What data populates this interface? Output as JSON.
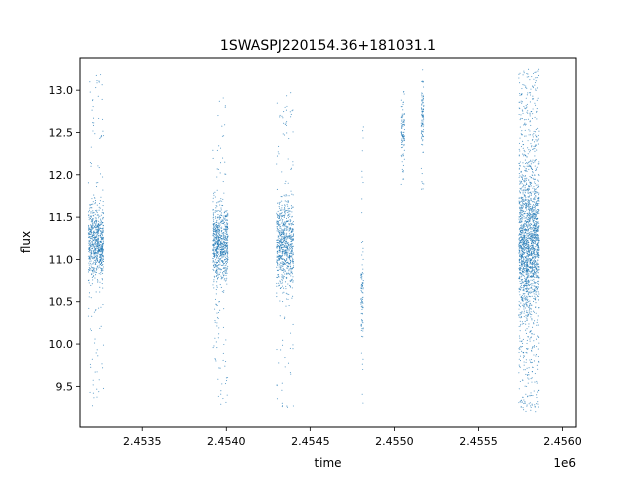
{
  "chart_data": {
    "type": "scatter",
    "title": "1SWASPJ220154.36+181031.1",
    "xlabel": "time",
    "ylabel": "flux",
    "x_offset_label": "1e6",
    "xlim": [
      2453130,
      2456080
    ],
    "ylim": [
      9.02,
      13.38
    ],
    "x_ticks": [
      2453500,
      2454000,
      2454500,
      2455000,
      2455500,
      2456000
    ],
    "x_tick_labels": [
      "2.4535",
      "2.4540",
      "2.4545",
      "2.4550",
      "2.4555",
      "2.4560"
    ],
    "y_ticks": [
      9.5,
      10.0,
      10.5,
      11.0,
      11.5,
      12.0,
      12.5,
      13.0
    ],
    "y_tick_labels": [
      "9.5",
      "10.0",
      "10.5",
      "11.0",
      "11.5",
      "12.0",
      "12.5",
      "13.0"
    ],
    "grid": false,
    "point_color": "#1f77b4",
    "observing_seasons": [
      {
        "x_range": [
          2453180,
          2453270
        ],
        "y_core": [
          10.85,
          11.55
        ],
        "y_extent": [
          9.25,
          13.2
        ]
      },
      {
        "x_range": [
          2453920,
          2454010
        ],
        "y_core": [
          10.85,
          11.55
        ],
        "y_extent": [
          9.25,
          12.95
        ]
      },
      {
        "x_range": [
          2454300,
          2454400
        ],
        "y_core": [
          10.75,
          11.6
        ],
        "y_extent": [
          9.25,
          13.0
        ]
      },
      {
        "x_range": [
          2454800,
          2454815
        ],
        "y_core": [
          10.2,
          11.0
        ],
        "y_extent": [
          9.3,
          12.6
        ]
      },
      {
        "x_range": [
          2455040,
          2455060
        ],
        "y_core": [
          12.2,
          12.9
        ],
        "y_extent": [
          11.8,
          13.0
        ]
      },
      {
        "x_range": [
          2455160,
          2455175
        ],
        "y_core": [
          12.4,
          13.0
        ],
        "y_extent": [
          11.8,
          13.25
        ]
      },
      {
        "x_range": [
          2455740,
          2455860
        ],
        "y_core": [
          10.5,
          11.9
        ],
        "y_extent": [
          9.2,
          13.25
        ]
      }
    ]
  }
}
